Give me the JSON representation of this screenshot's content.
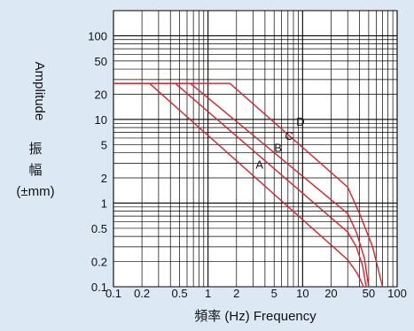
{
  "chart_data": {
    "type": "line",
    "title": "",
    "xlabel": "頻率 (Hz)  Frequency",
    "ylabel": "Amplitude",
    "ylabel_cjk": [
      "振",
      "幅"
    ],
    "ylabel_unit": "(±mm)",
    "x_scale": "log",
    "y_scale": "log",
    "xlim": [
      0.1,
      100
    ],
    "ylim": [
      0.1,
      200
    ],
    "grid": true,
    "x_ticks": [
      {
        "value": 0.1,
        "label": "0.1"
      },
      {
        "value": 0.2,
        "label": "0.2"
      },
      {
        "value": 0.5,
        "label": "0.5"
      },
      {
        "value": 1,
        "label": "1"
      },
      {
        "value": 2,
        "label": "2"
      },
      {
        "value": 5,
        "label": "5"
      },
      {
        "value": 10,
        "label": "10"
      },
      {
        "value": 20,
        "label": "20"
      },
      {
        "value": 50,
        "label": "50"
      },
      {
        "value": 100,
        "label": "100"
      }
    ],
    "y_ticks": [
      {
        "value": 0.1,
        "label": "0.1"
      },
      {
        "value": 0.2,
        "label": "0.2"
      },
      {
        "value": 0.5,
        "label": "0.5"
      },
      {
        "value": 1,
        "label": "1"
      },
      {
        "value": 2,
        "label": "2"
      },
      {
        "value": 5,
        "label": "5"
      },
      {
        "value": 10,
        "label": "10"
      },
      {
        "value": 20,
        "label": "20"
      },
      {
        "value": 50,
        "label": "50"
      },
      {
        "value": 100,
        "label": "100"
      }
    ],
    "line_color": "#e0202a",
    "series": [
      {
        "name": "A",
        "label_at": [
          3.5,
          2.6
        ],
        "x": [
          0.1,
          0.24,
          30,
          37,
          41,
          44
        ],
        "y": [
          27,
          27,
          0.21,
          0.15,
          0.12,
          0.1
        ]
      },
      {
        "name": "B",
        "label_at": [
          5.5,
          4.1
        ],
        "x": [
          0.1,
          0.45,
          30,
          37,
          43,
          47
        ],
        "y": [
          27,
          27,
          0.45,
          0.3,
          0.18,
          0.1
        ]
      },
      {
        "name": "C",
        "label_at": [
          7.2,
          5.7
        ],
        "x": [
          0.1,
          0.65,
          30,
          37,
          45,
          50
        ],
        "y": [
          27,
          27,
          0.75,
          0.45,
          0.22,
          0.1
        ]
      },
      {
        "name": "D",
        "label_at": [
          9.5,
          8.4
        ],
        "x": [
          0.1,
          1.7,
          30,
          40,
          55,
          70
        ],
        "y": [
          27,
          27,
          1.55,
          0.75,
          0.3,
          0.1
        ]
      }
    ]
  }
}
